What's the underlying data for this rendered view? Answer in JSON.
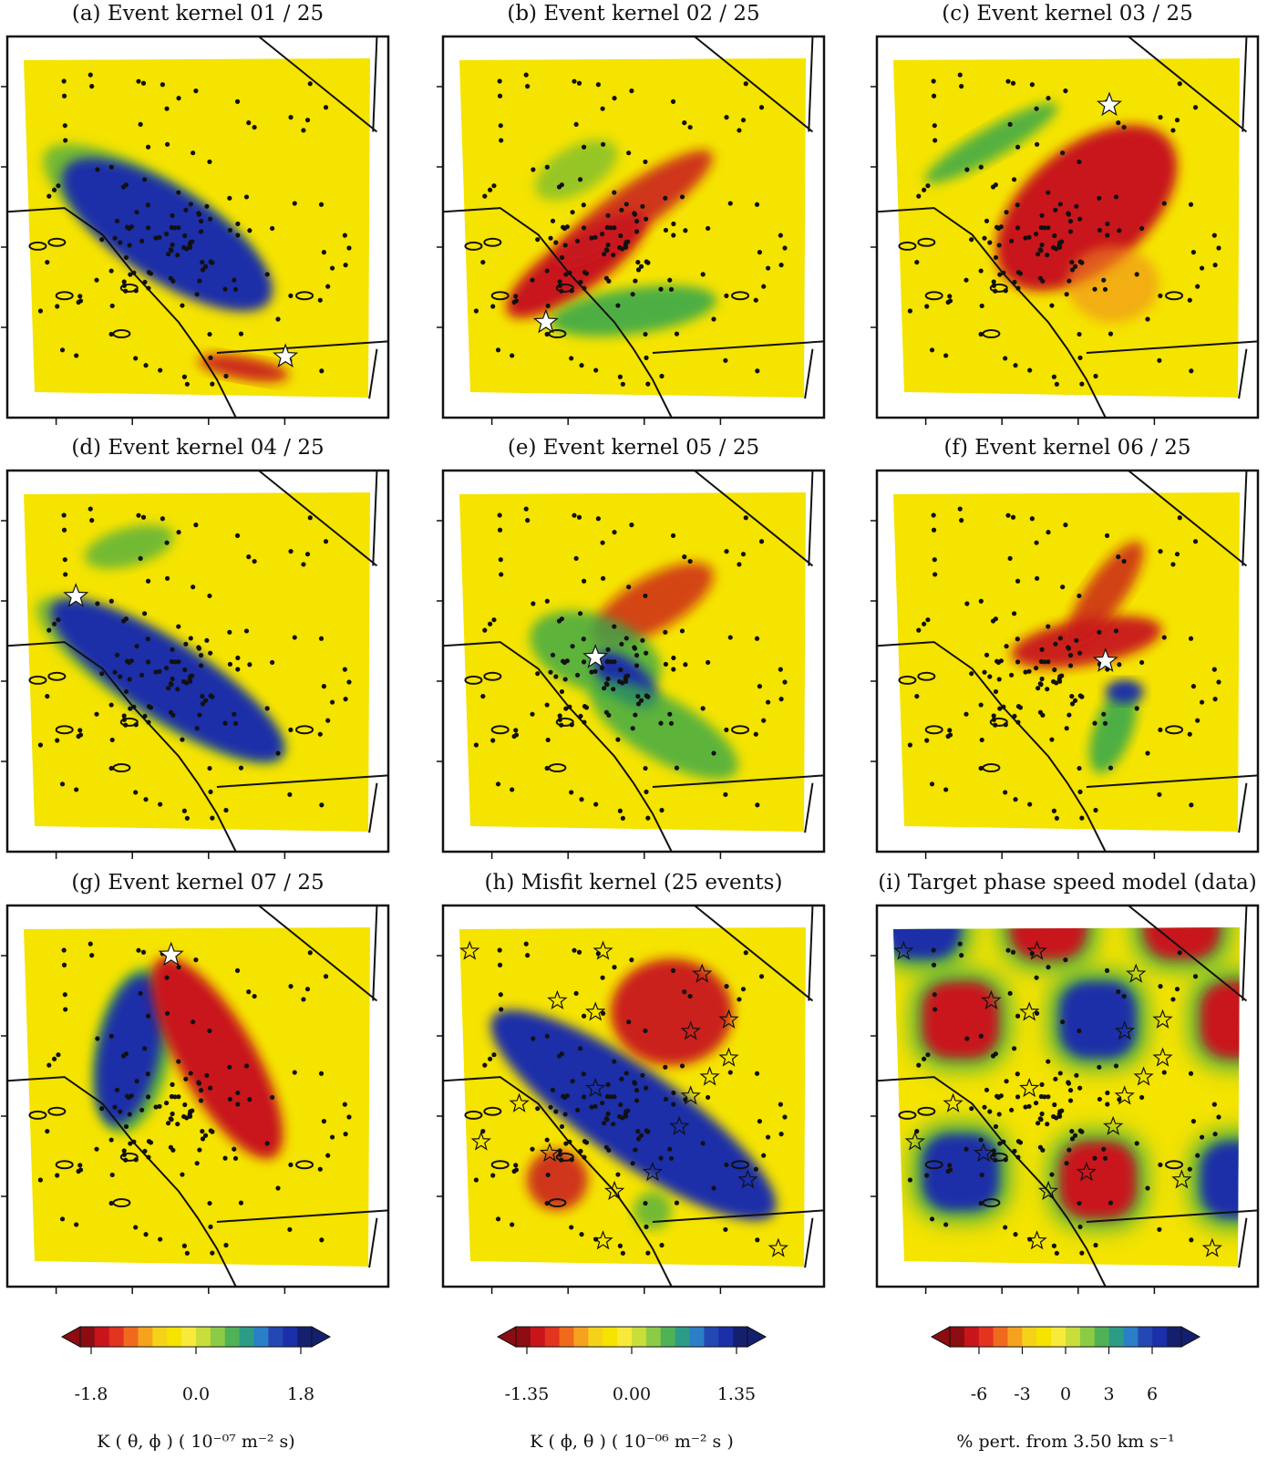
{
  "panels": [
    {
      "letter": "(a)",
      "title": "Event kernel  01 / 25"
    },
    {
      "letter": "(b)",
      "title": "Event kernel  02 / 25"
    },
    {
      "letter": "(c)",
      "title": "Event kernel  03 / 25"
    },
    {
      "letter": "(d)",
      "title": "Event kernel  04 / 25"
    },
    {
      "letter": "(e)",
      "title": "Event kernel  05 / 25"
    },
    {
      "letter": "(f)",
      "title": "Event kernel  06 / 25"
    },
    {
      "letter": "(g)",
      "title": "Event kernel  07 / 25"
    },
    {
      "letter": "(h)",
      "title": "Misfit kernel (25 events)"
    },
    {
      "letter": "(i)",
      "title": "Target phase speed model (data)"
    }
  ],
  "colorbars": [
    {
      "ticks": [
        "-1.8",
        "0.0",
        "1.8"
      ],
      "label": "K ( θ, ϕ )  ( 10⁻⁰⁷  m⁻² s)"
    },
    {
      "ticks": [
        "-1.35",
        "0.00",
        "1.35"
      ],
      "label": "K ( ϕ, θ )  ( 10⁻⁰⁶  m⁻² s )"
    },
    {
      "ticks": [
        "-6",
        "-3",
        "0",
        "3",
        "6"
      ],
      "label": "% pert. from 3.50 km s⁻¹"
    }
  ],
  "colors": {
    "background_field": "#f5e300",
    "positive_blue": "#1b2fa8",
    "negative_red": "#c8151c",
    "green": "#3aa84a",
    "orange": "#f08a1d",
    "frame": "#111111"
  },
  "colorbar_scale": [
    "#8b0d12",
    "#c8151c",
    "#e2341f",
    "#f06a1e",
    "#f5a21f",
    "#f5d21a",
    "#f5e300",
    "#f7ea3a",
    "#c9de3a",
    "#8ccb45",
    "#4fb257",
    "#2c9c86",
    "#2a7fc6",
    "#2448b3",
    "#1b2fa8",
    "#14206e"
  ]
}
